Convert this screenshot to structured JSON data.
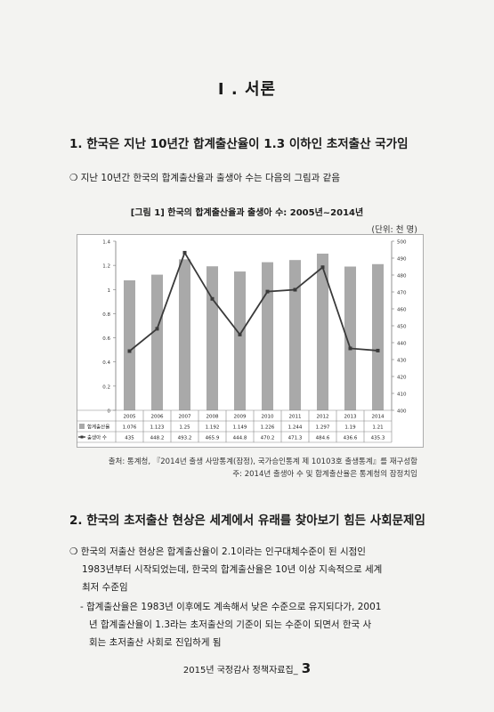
{
  "chapter_title": "I . 서론",
  "section1": {
    "heading": "1. 한국은 지난 10년간 합계출산율이 1.3 이하인 초저출산 국가임",
    "bullet": "지난 10년간 한국의 합계출산율과 출생아 수는 다음의 그림과 같음"
  },
  "figure": {
    "caption": "[그림 1] 한국의 합계출산율과 출생아 수: 2005년~2014년",
    "unit": "(단위: 천 명)",
    "source": "출처: 통계청, 『2014년 출생 사망통계(잠정), 국가승인통계 제 10103호 출생통계』를 재구성함",
    "note": "주: 2014년 출생아 수 및 합계출산율은 통계청의 잠정치임"
  },
  "chart_data": {
    "type": "bar",
    "categories": [
      "2005",
      "2006",
      "2007",
      "2008",
      "2009",
      "2010",
      "2011",
      "2012",
      "2013",
      "2014"
    ],
    "series": [
      {
        "name": "합계출산율",
        "type": "bar",
        "axis": "left",
        "values": [
          1.076,
          1.123,
          1.25,
          1.192,
          1.149,
          1.226,
          1.244,
          1.297,
          1.19,
          1.21
        ],
        "labels": [
          "1.076",
          "1.123",
          "1.25",
          "1.192",
          "1.149",
          "1.226",
          "1.244",
          "1.297",
          "1.19",
          "1.21"
        ]
      },
      {
        "name": "출생아 수",
        "type": "line",
        "axis": "right",
        "values": [
          435,
          448.2,
          493.2,
          465.9,
          444.8,
          470.2,
          471.3,
          484.6,
          436.6,
          435.3
        ],
        "labels": [
          "435",
          "448.2",
          "493.2",
          "465.9",
          "444.8",
          "470.2",
          "471.3",
          "484.6",
          "436.6",
          "435.3"
        ]
      }
    ],
    "ylim_left": [
      0,
      1.4
    ],
    "ylim_right": [
      400,
      500
    ],
    "yticks_left": [
      "0",
      "0.2",
      "0.4",
      "0.6",
      "0.8",
      "1",
      "1.2",
      "1.4"
    ],
    "yticks_right": [
      "400",
      "410",
      "420",
      "430",
      "440",
      "450",
      "460",
      "470",
      "480",
      "490",
      "500"
    ],
    "grid": false,
    "data_table": true,
    "colors": {
      "bar": "#a9a9a9",
      "line": "#3a3a3a"
    }
  },
  "section2": {
    "heading": "2. 한국의 초저출산 현상은 세계에서 유래를 찾아보기 힘든 사회문제임",
    "bullet_lines": [
      "한국의 저출산 현상은 합계출산율이 2.1이라는 인구대체수준이 된 시점인",
      "1983년부터 시작되었는데, 한국의 합계출산율은 10년 이상 지속적으로 세계",
      "최저 수준임"
    ],
    "sub_lines": [
      "- 합계출산율은 1983년 이후에도 계속해서 낮은 수준으로 유지되다가, 2001",
      "년 합계출산율이 1.3라는 초저출산의 기준이 되는 수준이 되면서 한국 사",
      "회는 초저출산 사회로 진입하게 됨"
    ]
  },
  "footer": {
    "text": "2015년 국정감사 정책자료집_",
    "page_number": "3"
  }
}
